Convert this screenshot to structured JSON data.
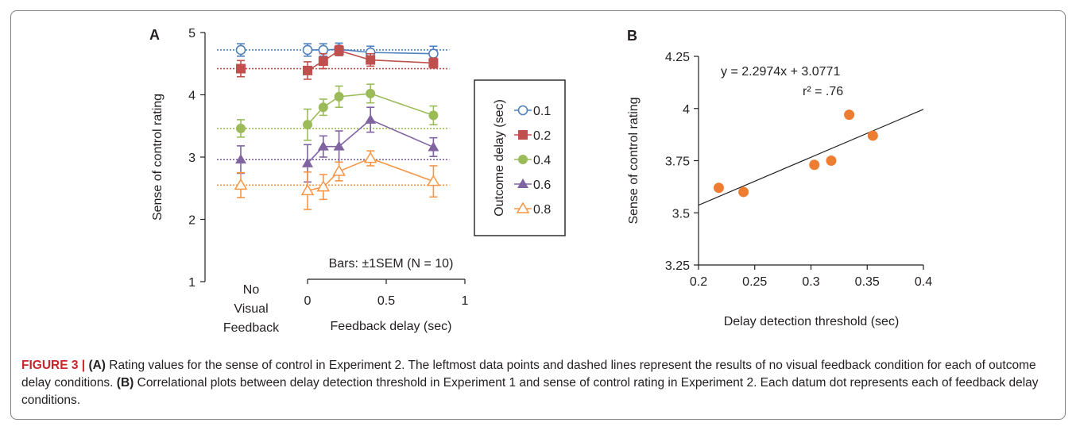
{
  "chart_data": [
    {
      "type": "line",
      "panel_label": "A",
      "ylabel": "Sense of control rating",
      "xlabel": "Feedback delay (sec)",
      "ylim": [
        1,
        5
      ],
      "yticks": [
        "1",
        "2",
        "3",
        "4",
        "5"
      ],
      "xlim": [
        0,
        1
      ],
      "xticks": [
        "0",
        "0.5",
        "1"
      ],
      "no_feedback_label": [
        "No",
        "Visual",
        "Feedback"
      ],
      "bars_note": "Bars: ±1SEM (N = 10)",
      "legend_title": "Outcome delay (sec)",
      "x": [
        0,
        0.1,
        0.2,
        0.4,
        0.8
      ],
      "series": [
        {
          "name": "0.1",
          "color": "#4f81bd",
          "marker": "circle-open",
          "no_feedback": 4.72,
          "no_feedback_err": 0.1,
          "values": [
            4.72,
            4.72,
            4.73,
            4.68,
            4.66
          ],
          "errors": [
            0.1,
            0.1,
            0.1,
            0.1,
            0.12
          ]
        },
        {
          "name": "0.2",
          "color": "#c0504d",
          "marker": "square",
          "no_feedback": 4.42,
          "no_feedback_err": 0.13,
          "values": [
            4.39,
            4.54,
            4.71,
            4.56,
            4.51
          ],
          "errors": [
            0.14,
            0.12,
            0.08,
            0.1,
            0.08
          ]
        },
        {
          "name": "0.4",
          "color": "#9bbb59",
          "marker": "circle",
          "no_feedback": 3.46,
          "no_feedback_err": 0.14,
          "values": [
            3.52,
            3.8,
            3.97,
            4.02,
            3.67
          ],
          "errors": [
            0.25,
            0.13,
            0.17,
            0.15,
            0.15
          ]
        },
        {
          "name": "0.6",
          "color": "#8064a2",
          "marker": "triangle",
          "no_feedback": 2.96,
          "no_feedback_err": 0.22,
          "values": [
            2.9,
            3.17,
            3.17,
            3.6,
            3.16
          ],
          "errors": [
            0.3,
            0.17,
            0.25,
            0.2,
            0.15
          ]
        },
        {
          "name": "0.8",
          "color": "#f79646",
          "marker": "triangle-open",
          "no_feedback": 2.55,
          "no_feedback_err": 0.2,
          "values": [
            2.46,
            2.52,
            2.77,
            2.98,
            2.61
          ],
          "errors": [
            0.3,
            0.2,
            0.15,
            0.12,
            0.25
          ]
        }
      ]
    },
    {
      "type": "scatter",
      "panel_label": "B",
      "ylabel": "Sense of control rating",
      "xlabel": "Delay detection threshold (sec)",
      "xlim": [
        0.2,
        0.4
      ],
      "ylim": [
        3.25,
        4.25
      ],
      "xticks": [
        "0.2",
        "0.25",
        "0.3",
        "0.35",
        "0.4"
      ],
      "yticks": [
        "3.25",
        "3.5",
        "3.75",
        "4",
        "4.25"
      ],
      "x": [
        0.218,
        0.24,
        0.303,
        0.318,
        0.334,
        0.355
      ],
      "y": [
        3.62,
        3.6,
        3.73,
        3.75,
        3.97,
        3.87
      ],
      "point_color": "#ed7d31",
      "equation": "y = 2.2974x + 3.0771",
      "r2_text": "r² = .76",
      "fit": {
        "slope": 2.2974,
        "intercept": 3.0771
      }
    }
  ],
  "caption": {
    "label": "FIGURE 3 |",
    "partA_label": "(A)",
    "partA_text": " Rating values for the sense of control in Experiment 2. The leftmost data points and dashed lines represent the results of no visual feedback condition for each of outcome delay conditions. ",
    "partB_label": "(B)",
    "partB_text": " Correlational plots between delay detection threshold in Experiment 1 and sense of control rating in Experiment 2. Each datum dot represents each of feedback delay conditions."
  }
}
